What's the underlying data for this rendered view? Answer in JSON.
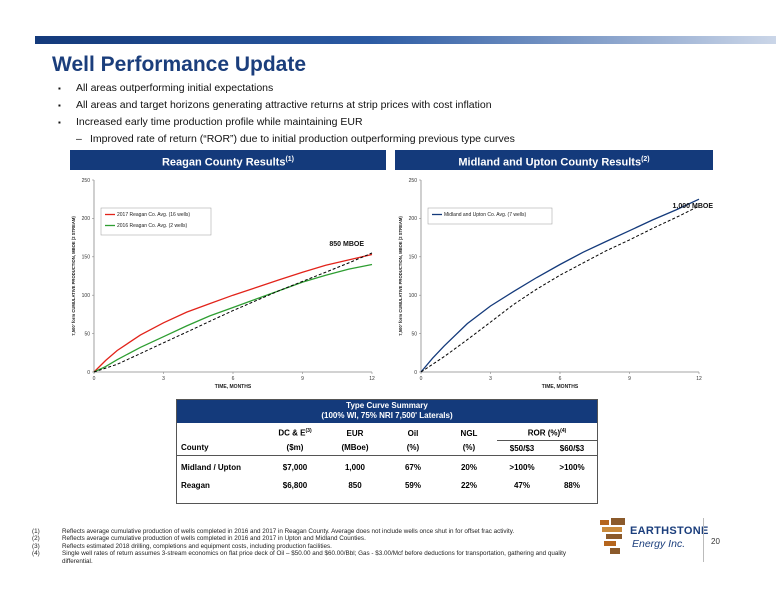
{
  "page": {
    "title": "Well Performance Update",
    "bullets": [
      "All areas outperforming initial expectations",
      "All areas and target horizons generating attractive returns at strip prices with cost inflation",
      "Increased early time production profile while maintaining EUR"
    ],
    "sub_bullet": "Improved rate of return (“ROR”) due to initial production outperforming previous type curves",
    "bullet_marker": "▪",
    "sub_marker": "–",
    "page_number": "20"
  },
  "panels": {
    "left": {
      "title": "Reagan County Results",
      "sup": "(1)"
    },
    "right": {
      "title": "Midland and Upton County Results",
      "sup": "(2)"
    }
  },
  "chart_data": [
    {
      "type": "line",
      "xlabel": "TIME, MONTHS",
      "ylabel": "7,500' form CUMULATIVE PRODUCTION, MBOE (2 STREAM)",
      "xlim": [
        0,
        12
      ],
      "ylim": [
        0,
        250
      ],
      "xticks": [
        "0",
        "3",
        "6",
        "9",
        "12"
      ],
      "yticks": [
        "0",
        "50",
        "100",
        "150",
        "200",
        "250"
      ],
      "legend_position": "top-left",
      "annotation": "850 MBOE",
      "series": [
        {
          "name": "2017 Reagan Co. Avg. (16 wells)",
          "color": "#e2231a",
          "style": "solid",
          "x": [
            0,
            0.5,
            1,
            2,
            3,
            4,
            5,
            6,
            7,
            8,
            9,
            10,
            11,
            12
          ],
          "y": [
            0,
            15,
            28,
            48,
            64,
            78,
            89,
            100,
            110,
            120,
            130,
            139,
            146,
            153
          ]
        },
        {
          "name": "2016 Reagan Co. Avg. (2 wells)",
          "color": "#2e9e32",
          "style": "solid",
          "x": [
            0,
            0.5,
            1,
            2,
            3,
            4,
            5,
            6,
            7,
            8,
            9,
            10,
            11,
            12
          ],
          "y": [
            0,
            7,
            16,
            32,
            46,
            60,
            73,
            84,
            95,
            106,
            117,
            126,
            134,
            140
          ]
        },
        {
          "name": "",
          "color": "#000000",
          "style": "dashed",
          "x": [
            0,
            1,
            2,
            3,
            4,
            5,
            6,
            7,
            8,
            9,
            10,
            11,
            12
          ],
          "y": [
            0,
            10,
            24,
            38,
            52,
            66,
            80,
            93,
            106,
            118,
            130,
            142,
            155
          ]
        }
      ]
    },
    {
      "type": "line",
      "xlabel": "TIME, MONTHS",
      "ylabel": "7,500' form CUMULATIVE PRODUCTION, MBOE (2 STREAM)",
      "xlim": [
        0,
        12
      ],
      "ylim": [
        0,
        250
      ],
      "xticks": [
        "0",
        "3",
        "6",
        "9",
        "12"
      ],
      "yticks": [
        "0",
        "50",
        "100",
        "150",
        "200",
        "250"
      ],
      "legend_position": "top-left",
      "annotation": "1,000 MBOE",
      "series": [
        {
          "name": "Midland and Upton Co. Avg. (7 wells)",
          "color": "#143a7b",
          "style": "solid",
          "x": [
            0,
            0.5,
            1,
            2,
            3,
            4,
            5,
            6,
            7,
            8,
            9,
            10,
            11,
            12
          ],
          "y": [
            0,
            18,
            34,
            63,
            86,
            105,
            123,
            140,
            156,
            170,
            184,
            198,
            211,
            225
          ]
        },
        {
          "name": "",
          "color": "#000000",
          "style": "dashed",
          "x": [
            0,
            1,
            2,
            3,
            4,
            5,
            6,
            7,
            8,
            9,
            10,
            11,
            12
          ],
          "y": [
            0,
            20,
            42,
            65,
            88,
            108,
            126,
            142,
            158,
            172,
            187,
            201,
            216
          ]
        }
      ]
    }
  ],
  "summary": {
    "title1": "Type Curve Summary",
    "title2": "(100% WI, 75% NRI 7,500' Laterals)",
    "headers": [
      "DC & E",
      "EUR",
      "Oil",
      "NGL",
      "ROR (%)"
    ],
    "header_sups": [
      "(3)",
      "",
      "",
      "",
      "(4)"
    ],
    "county_label": "County",
    "units": [
      "($m)",
      "(MBoe)",
      "(%)",
      "(%)",
      "$50/$3",
      "$60/$3"
    ],
    "rows": [
      {
        "county": "Midland / Upton",
        "dce": "$7,000",
        "eur": "1,000",
        "oil": "67%",
        "ngl": "20%",
        "ror50": ">100%",
        "ror60": ">100%"
      },
      {
        "county": "Reagan",
        "dce": "$6,800",
        "eur": "850",
        "oil": "59%",
        "ngl": "22%",
        "ror50": "47%",
        "ror60": "88%"
      }
    ]
  },
  "footnotes": [
    {
      "num": "(1)",
      "text": "Reflects average cumulative production of wells completed in 2016 and 2017 in Reagan County.  Average does not include wells once shut in for offset frac activity."
    },
    {
      "num": "(2)",
      "text": "Reflects average cumulative production of wells completed in 2016 and 2017 in Upton and Midland Counties."
    },
    {
      "num": "(3)",
      "text": "Reflects estimated 2018 drilling, completions and equipment costs, including production facilities."
    },
    {
      "num": "(4)",
      "text": "Single well rates of return assumes 3-stream economics on flat price deck of Oil – $50.00 and $60.00/Bbl; Gas - $3.00/Mcf before deductions for transportation, gathering and quality differential."
    }
  ],
  "logo": {
    "line1": "EARTHSTONE",
    "line2": "Energy Inc.",
    "colors": [
      "#8b5a2b",
      "#b5651d",
      "#1b3e7c"
    ]
  }
}
